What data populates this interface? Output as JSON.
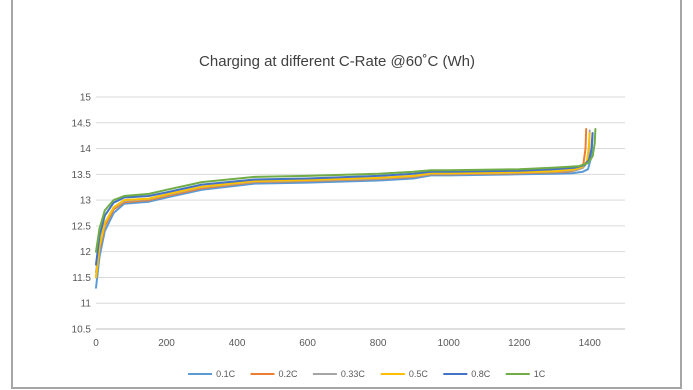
{
  "chart_data": {
    "type": "line",
    "title": "Charging at different C-Rate  @60˚C (Wh)",
    "xlabel": "",
    "ylabel": "",
    "xlim": [
      0,
      1500
    ],
    "ylim": [
      10.5,
      15
    ],
    "x_ticks": [
      "0",
      "200",
      "400",
      "600",
      "800",
      "1000",
      "1200",
      "1400"
    ],
    "y_ticks": [
      "10.5",
      "11",
      "11.5",
      "12",
      "12.5",
      "13",
      "13.5",
      "14",
      "14.5",
      "15"
    ],
    "grid": "horizontal",
    "legend_position": "bottom",
    "series": [
      {
        "name": "0.1C",
        "color": "#5b9bd5",
        "x": [
          0,
          10,
          25,
          50,
          80,
          150,
          200,
          300,
          450,
          600,
          800,
          900,
          950,
          1000,
          1200,
          1300,
          1350,
          1380,
          1395,
          1405,
          1408
        ],
        "y": [
          11.3,
          11.9,
          12.4,
          12.75,
          12.93,
          12.97,
          13.05,
          13.2,
          13.32,
          13.34,
          13.38,
          13.42,
          13.48,
          13.48,
          13.5,
          13.51,
          13.52,
          13.55,
          13.6,
          13.85,
          14.3
        ]
      },
      {
        "name": "0.2C",
        "color": "#ed7d31",
        "x": [
          0,
          10,
          25,
          50,
          80,
          150,
          200,
          300,
          450,
          600,
          800,
          900,
          950,
          1000,
          1200,
          1300,
          1350,
          1370,
          1382,
          1388,
          1390
        ],
        "y": [
          11.5,
          12.05,
          12.5,
          12.82,
          12.96,
          13.0,
          13.08,
          13.23,
          13.35,
          13.37,
          13.41,
          13.45,
          13.5,
          13.5,
          13.52,
          13.54,
          13.56,
          13.6,
          13.7,
          14.0,
          14.38
        ]
      },
      {
        "name": "0.33C",
        "color": "#a5a5a5",
        "x": [
          0,
          10,
          25,
          50,
          80,
          150,
          200,
          300,
          450,
          600,
          800,
          900,
          950,
          1000,
          1200,
          1300,
          1360,
          1380,
          1392,
          1398,
          1400
        ],
        "y": [
          11.6,
          12.1,
          12.55,
          12.85,
          12.98,
          13.02,
          13.1,
          13.25,
          13.36,
          13.38,
          13.42,
          13.46,
          13.51,
          13.51,
          13.53,
          13.55,
          13.58,
          13.62,
          13.72,
          14.0,
          14.35
        ]
      },
      {
        "name": "0.5C",
        "color": "#ffc000",
        "x": [
          0,
          10,
          25,
          50,
          80,
          150,
          200,
          300,
          450,
          600,
          800,
          900,
          950,
          1000,
          1200,
          1300,
          1360,
          1380,
          1392,
          1398,
          1400
        ],
        "y": [
          11.5,
          12.1,
          12.55,
          12.86,
          13.0,
          13.03,
          13.11,
          13.26,
          13.37,
          13.39,
          13.43,
          13.47,
          13.52,
          13.52,
          13.54,
          13.56,
          13.6,
          13.65,
          13.75,
          14.05,
          14.3
        ]
      },
      {
        "name": "0.8C",
        "color": "#4472c4",
        "x": [
          0,
          10,
          25,
          50,
          80,
          150,
          200,
          300,
          450,
          600,
          800,
          900,
          950,
          1000,
          1200,
          1300,
          1360,
          1385,
          1398,
          1405,
          1408
        ],
        "y": [
          11.75,
          12.3,
          12.7,
          12.95,
          13.05,
          13.08,
          13.15,
          13.3,
          13.4,
          13.42,
          13.47,
          13.51,
          13.55,
          13.55,
          13.57,
          13.6,
          13.63,
          13.68,
          13.78,
          14.0,
          14.3
        ]
      },
      {
        "name": "1C",
        "color": "#70ad47",
        "x": [
          0,
          10,
          25,
          50,
          80,
          150,
          200,
          300,
          450,
          600,
          800,
          900,
          950,
          1000,
          1200,
          1300,
          1370,
          1395,
          1408,
          1414,
          1416
        ],
        "y": [
          12.0,
          12.45,
          12.8,
          13.0,
          13.08,
          13.12,
          13.2,
          13.35,
          13.45,
          13.47,
          13.51,
          13.55,
          13.58,
          13.58,
          13.6,
          13.63,
          13.66,
          13.72,
          13.85,
          14.1,
          14.38
        ]
      }
    ]
  }
}
